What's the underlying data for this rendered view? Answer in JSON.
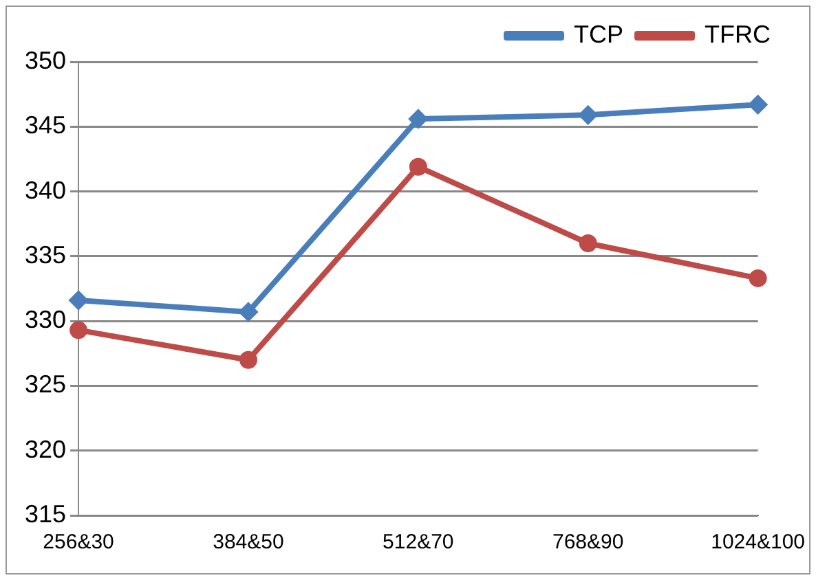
{
  "chart_data": {
    "type": "line",
    "categories": [
      "256&30",
      "384&50",
      "512&70",
      "768&90",
      "1024&100"
    ],
    "series": [
      {
        "name": "TCP",
        "color": "#4a7ebb",
        "values": [
          331.6,
          330.7,
          345.6,
          345.9,
          346.7
        ],
        "marker": "diamond"
      },
      {
        "name": "TFRC",
        "color": "#be4b48",
        "values": [
          329.3,
          327.0,
          341.9,
          336.0,
          333.3
        ],
        "marker": "circle"
      }
    ],
    "ylim": [
      315,
      350
    ],
    "yticks": [
      315,
      320,
      325,
      330,
      335,
      340,
      345,
      350
    ],
    "grid": "y",
    "legend": "top right"
  }
}
